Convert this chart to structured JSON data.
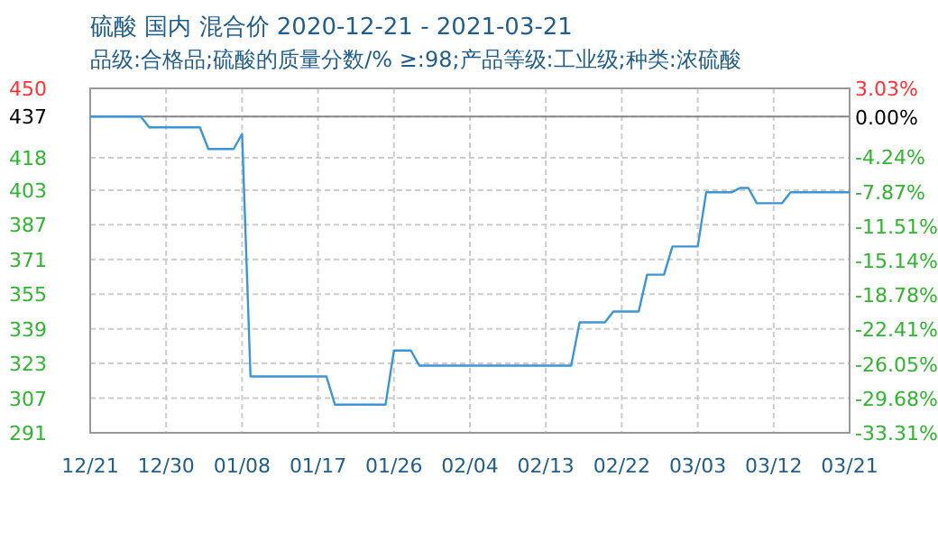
{
  "chart_data": {
    "type": "line",
    "title": "硫酸 国内 混合价 2020-12-21 - 2021-03-21",
    "subtitle": "品级:合格品;硫酸的质量分数/% ≥:98;产品等级:工业级;种类:浓硫酸",
    "x": [
      "2020-12-21",
      "2020-12-27",
      "2020-12-28",
      "2021-01-03",
      "2021-01-04",
      "2021-01-07",
      "2021-01-08",
      "2021-01-09",
      "2021-01-18",
      "2021-01-19",
      "2021-01-25",
      "2021-01-26",
      "2021-01-28",
      "2021-01-29",
      "2021-02-16",
      "2021-02-17",
      "2021-02-20",
      "2021-02-21",
      "2021-02-24",
      "2021-02-25",
      "2021-02-27",
      "2021-02-28",
      "2021-03-03",
      "2021-03-04",
      "2021-03-07",
      "2021-03-08",
      "2021-03-09",
      "2021-03-10",
      "2021-03-13",
      "2021-03-14",
      "2021-03-21"
    ],
    "series": [
      {
        "color": "#3d95d5",
        "values": [
          437,
          437,
          432,
          432,
          422,
          422,
          429,
          317,
          317,
          304,
          304,
          329,
          329,
          322,
          322,
          342,
          342,
          347,
          347,
          364,
          364,
          377,
          377,
          402,
          402,
          404,
          404,
          397,
          397,
          402,
          402
        ]
      }
    ],
    "xlim": [
      "2020-12-21",
      "2021-03-21"
    ],
    "xticks": [
      {
        "value": "2020-12-21",
        "label": "12/21"
      },
      {
        "value": "2020-12-30",
        "label": "12/30"
      },
      {
        "value": "2021-01-08",
        "label": "01/08"
      },
      {
        "value": "2021-01-17",
        "label": "01/17"
      },
      {
        "value": "2021-01-26",
        "label": "01/26"
      },
      {
        "value": "2021-02-04",
        "label": "02/04"
      },
      {
        "value": "2021-02-13",
        "label": "02/13"
      },
      {
        "value": "2021-02-22",
        "label": "02/22"
      },
      {
        "value": "2021-03-03",
        "label": "03/03"
      },
      {
        "value": "2021-03-12",
        "label": "03/12"
      },
      {
        "value": "2021-03-21",
        "label": "03/21"
      }
    ],
    "ylim": [
      291,
      450
    ],
    "yticks": [
      450,
      437,
      418,
      403,
      387,
      371,
      355,
      339,
      323,
      307,
      291
    ],
    "y2lim": [
      -33.31,
      3.03
    ],
    "y2ticks": [
      {
        "value": 3.03,
        "label": "3.03%"
      },
      {
        "value": 0,
        "label": "0.00%"
      },
      {
        "value": -4.24,
        "label": "-4.24%"
      },
      {
        "value": -7.87,
        "label": "-7.87%"
      },
      {
        "value": -11.51,
        "label": "-11.51%"
      },
      {
        "value": -15.14,
        "label": "-15.14%"
      },
      {
        "value": -18.78,
        "label": "-18.78%"
      },
      {
        "value": -22.41,
        "label": "-22.41%"
      },
      {
        "value": -26.05,
        "label": "-26.05%"
      },
      {
        "value": -29.68,
        "label": "-29.68%"
      },
      {
        "value": -33.31,
        "label": "-33.31%"
      }
    ],
    "ref_lines": [
      {
        "axis": "y",
        "value": 437,
        "color": "#888888"
      }
    ],
    "grid": true
  }
}
